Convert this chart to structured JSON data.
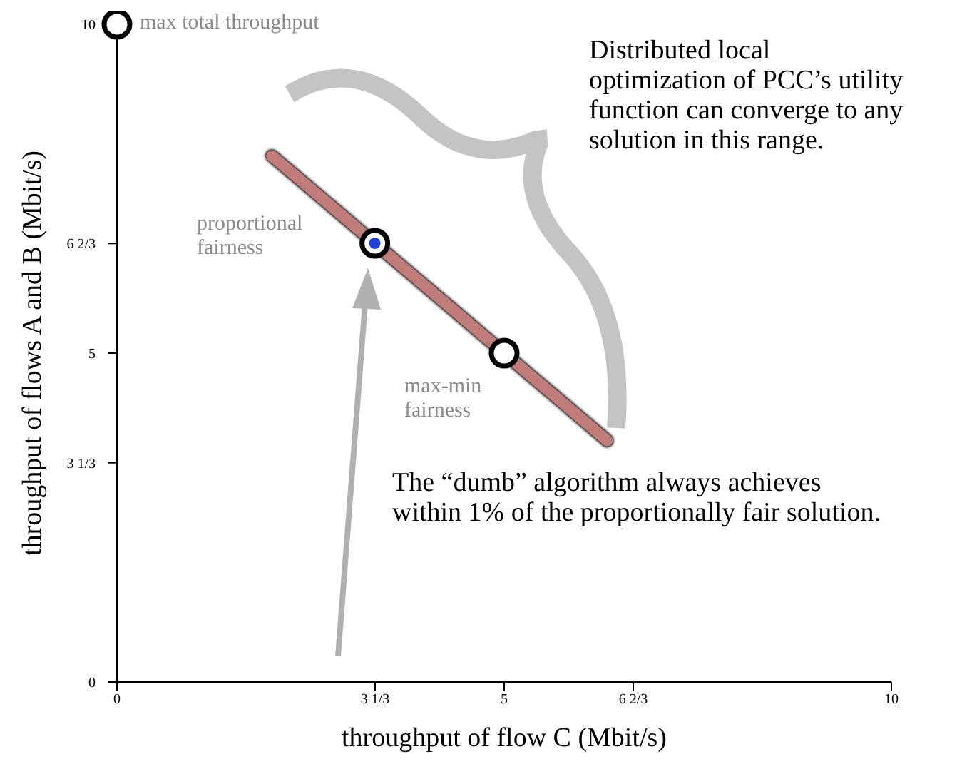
{
  "chart_data": {
    "type": "line",
    "xlabel": "throughput of flow C (Mbit/s)",
    "ylabel": "throughput of flows A and B (Mbit/s)",
    "xlim": [
      0,
      10
    ],
    "ylim": [
      0,
      10
    ],
    "xticks": [
      0,
      {
        "value": 3.333,
        "label": "3 1/3"
      },
      5,
      {
        "value": 6.667,
        "label": "6 2/3"
      },
      10
    ],
    "yticks": [
      0,
      {
        "value": 3.333,
        "label": "3 1/3"
      },
      5,
      {
        "value": 6.667,
        "label": "6 2/3"
      },
      10
    ],
    "grid": false,
    "legend": false,
    "line_style": "solid",
    "series": [
      {
        "color": "#c07c78",
        "x": [
          2,
          6.33
        ],
        "values": [
          8,
          3.67
        ],
        "marker": "none"
      },
      {
        "type": "scatter",
        "color": "#ffffff",
        "x": [
          0,
          3.33,
          5
        ],
        "values": [
          10,
          6.67,
          5
        ],
        "marker": "circle"
      },
      {
        "type": "scatter",
        "color": "#1f3fd6",
        "x": [
          3.33
        ],
        "values": [
          6.67
        ],
        "marker": "circle"
      }
    ],
    "annotations": [
      {
        "text": "max total throughput",
        "x": 0,
        "y": 10
      },
      "proportional fairness",
      {
        "text": "max-min fairness",
        "x": 5,
        "y": 5
      },
      "Distributed local optimization of PCC’s utility function can converge to any solution in this range.",
      "The “dumb” algorithm always achieves within 1% of the proportionally fair solution."
    ]
  }
}
